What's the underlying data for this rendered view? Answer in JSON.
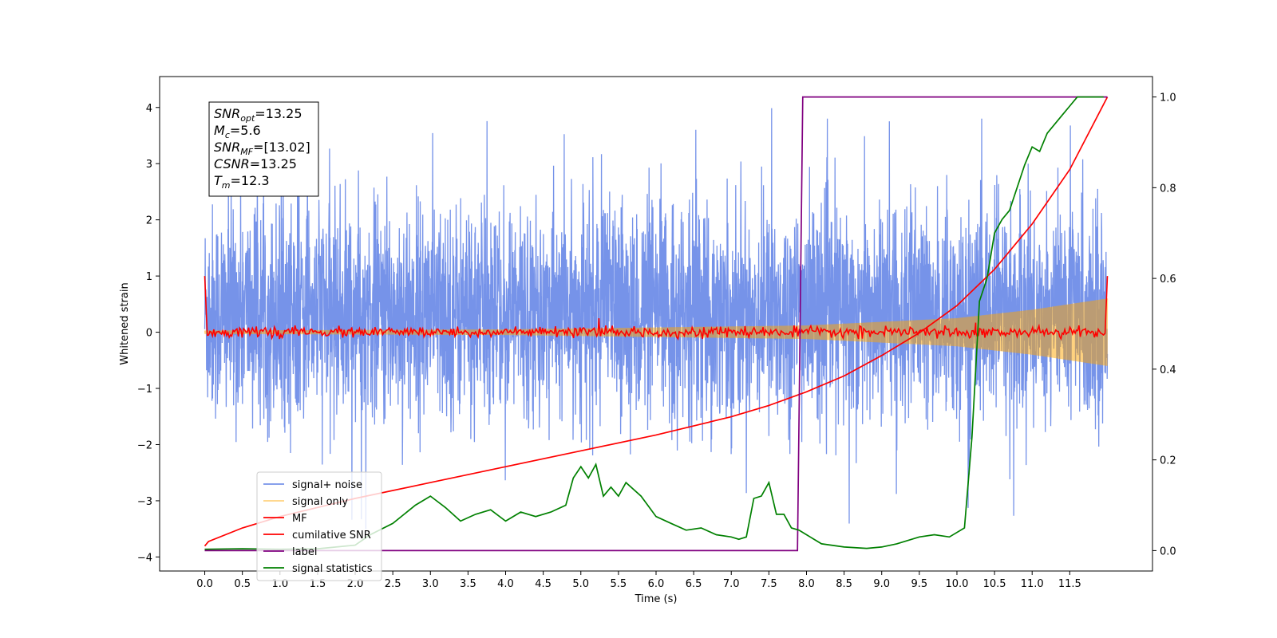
{
  "chart_data": {
    "type": "line",
    "xlabel": "Time (s)",
    "ylabel_left": "Whitened strain",
    "ylabel_right": "",
    "xlim": [
      -0.6,
      12.6
    ],
    "ylim_left": [
      -4.25,
      4.55
    ],
    "ylim_right": [
      -0.045,
      1.045
    ],
    "x_ticks": [
      "0.0",
      "0.5",
      "1.0",
      "1.5",
      "2.0",
      "2.5",
      "3.0",
      "3.5",
      "4.0",
      "4.5",
      "5.0",
      "5.5",
      "6.0",
      "6.5",
      "7.0",
      "7.5",
      "8.0",
      "8.5",
      "9.0",
      "9.5",
      "10.0",
      "10.5",
      "11.0",
      "11.5"
    ],
    "y_ticks_left": [
      "4",
      "3",
      "2",
      "1",
      "0",
      "−1",
      "−2",
      "−3",
      "−4"
    ],
    "y_ticks_right": [
      "1.0",
      "0.8",
      "0.6",
      "0.4",
      "0.2",
      "0.0"
    ],
    "legend_position": "lower-left",
    "annotation": [
      {
        "main": "SNR",
        "sub": "opt",
        "rest": "=13.25"
      },
      {
        "main": "M",
        "sub": "c",
        "rest": "=5.6"
      },
      {
        "main": "SNR",
        "sub": "MF",
        "rest": "=[13.02]"
      },
      {
        "main": "CSNR",
        "sub": "",
        "rest": "=13.25"
      },
      {
        "main": "T",
        "sub": "m",
        "rest": "=12.3"
      }
    ],
    "series": [
      {
        "name": "signal+ noise",
        "axis": "left",
        "color": "#4169e1",
        "kind": "noise",
        "x_range": [
          0.0,
          12.0
        ],
        "typical_range": [
          -2.3,
          2.9
        ],
        "extremes": [
          -3.65,
          4.15
        ]
      },
      {
        "name": "signal only",
        "axis": "left",
        "color": "#ffa500",
        "kind": "chirp",
        "x_range": [
          0.0,
          12.0
        ],
        "envelope": {
          "x": [
            0.0,
            4.0,
            8.0,
            10.0,
            11.0,
            12.0
          ],
          "amp": [
            0.03,
            0.05,
            0.12,
            0.25,
            0.4,
            0.6
          ]
        }
      },
      {
        "name": "MF",
        "axis": "left",
        "color": "#ff0000",
        "kind": "mf",
        "x_range": [
          0.0,
          12.0
        ],
        "edge_value": 1.0,
        "typical_range": [
          -0.12,
          0.12
        ],
        "spikes": [
          {
            "x": 5.24,
            "y": 0.25
          },
          {
            "x": 10.25,
            "y": 0.17
          }
        ]
      },
      {
        "name": "cumilative SNR",
        "axis": "right",
        "color": "#ff0000",
        "x": [
          0.0,
          0.05,
          0.5,
          1.0,
          2.0,
          3.0,
          4.0,
          5.0,
          6.0,
          7.0,
          7.5,
          8.0,
          8.5,
          9.0,
          9.5,
          10.0,
          10.5,
          11.0,
          11.5,
          12.0
        ],
        "y": [
          0.01,
          0.02,
          0.05,
          0.075,
          0.115,
          0.15,
          0.185,
          0.22,
          0.255,
          0.295,
          0.32,
          0.35,
          0.385,
          0.43,
          0.48,
          0.54,
          0.62,
          0.72,
          0.84,
          1.0
        ]
      },
      {
        "name": "label",
        "axis": "right",
        "color": "#800080",
        "x": [
          0.0,
          7.88,
          7.95,
          12.0
        ],
        "y": [
          0.0,
          0.0,
          1.0,
          1.0
        ]
      },
      {
        "name": "signal statistics",
        "axis": "right",
        "color": "#008000",
        "x": [
          0.0,
          0.5,
          1.0,
          1.5,
          2.0,
          2.2,
          2.5,
          2.8,
          3.0,
          3.2,
          3.4,
          3.6,
          3.8,
          4.0,
          4.2,
          4.4,
          4.6,
          4.8,
          4.9,
          5.0,
          5.1,
          5.2,
          5.3,
          5.4,
          5.5,
          5.6,
          5.8,
          6.0,
          6.2,
          6.4,
          6.6,
          6.8,
          7.0,
          7.1,
          7.2,
          7.3,
          7.4,
          7.5,
          7.6,
          7.7,
          7.8,
          7.9,
          8.0,
          8.2,
          8.5,
          8.8,
          9.0,
          9.2,
          9.4,
          9.5,
          9.7,
          9.9,
          10.1,
          10.2,
          10.3,
          10.4,
          10.5,
          10.6,
          10.7,
          10.9,
          11.0,
          11.1,
          11.2,
          11.4,
          11.5,
          11.6,
          11.7,
          11.8,
          11.95
        ],
        "y": [
          0.003,
          0.004,
          0.003,
          0.004,
          0.012,
          0.035,
          0.06,
          0.1,
          0.12,
          0.095,
          0.065,
          0.08,
          0.09,
          0.065,
          0.085,
          0.075,
          0.085,
          0.1,
          0.16,
          0.185,
          0.16,
          0.19,
          0.12,
          0.14,
          0.12,
          0.15,
          0.12,
          0.075,
          0.06,
          0.045,
          0.05,
          0.035,
          0.03,
          0.025,
          0.03,
          0.115,
          0.12,
          0.15,
          0.08,
          0.08,
          0.05,
          0.045,
          0.035,
          0.015,
          0.008,
          0.005,
          0.008,
          0.015,
          0.025,
          0.03,
          0.035,
          0.03,
          0.05,
          0.25,
          0.55,
          0.6,
          0.7,
          0.73,
          0.75,
          0.85,
          0.89,
          0.88,
          0.92,
          0.96,
          0.98,
          1.0,
          1.0,
          1.0,
          1.0
        ]
      }
    ]
  }
}
